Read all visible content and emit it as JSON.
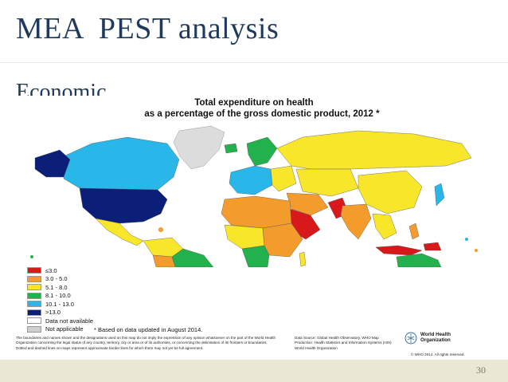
{
  "slide": {
    "title": "MEA  PEST analysis",
    "subtitle": "Economic",
    "page_number": "30"
  },
  "figure": {
    "title_line1": "Total expenditure on health",
    "title_line2": "as a percentage of the gross domestic product, 2012 *",
    "legend": [
      {
        "label": "≤3.0",
        "color": "#d7191c"
      },
      {
        "label": "3.0 - 5.0",
        "color": "#f39c2c"
      },
      {
        "label": "5.1 - 8.0",
        "color": "#f7e62a"
      },
      {
        "label": "8.1 - 10.0",
        "color": "#22b14c"
      },
      {
        "label": "10.1 - 13.0",
        "color": "#29b6e8"
      },
      {
        "label": ">13.0",
        "color": "#0b1f78"
      },
      {
        "label": "Data not available",
        "color": "#ffffff"
      },
      {
        "label": "Not applicable",
        "color": "#cfcfcf"
      }
    ],
    "based_note": "* Based on data updated in August 2014.",
    "disclaimer": "The boundaries and names shown and the designations used on this map do not imply the expression of any opinion whatsoever on the part of the World Health Organization concerning the legal status of any country, territory, city or area or of its authorities, or concerning the delimitation of its frontiers or boundaries. Dotted and dashed lines on maps represent approximate border lines for which there may not yet be full agreement.",
    "data_source": "Data Source: Global Health Observatory, WHO Map Production: Health Statistics and Information Systems (HSI) World Health Organization",
    "org_name_line1": "World Health",
    "org_name_line2": "Organization",
    "copyright": "© WHO 2014. All rights reserved."
  }
}
